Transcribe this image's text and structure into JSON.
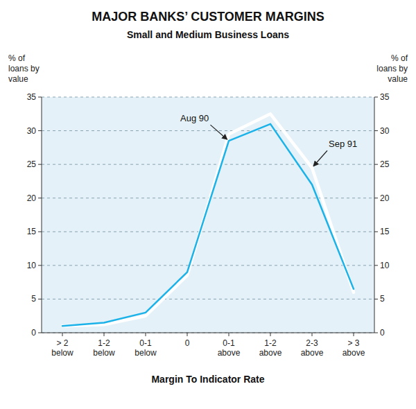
{
  "chart_data": {
    "type": "line",
    "title": "MAJOR BANKS’ CUSTOMER MARGINS",
    "subtitle": "Small and Medium Business Loans",
    "x_label": "Margin To Indicator Rate",
    "y_label": "% of\nloans by\nvalue",
    "y2_label": "% of\nloans by\nvalue",
    "categories": [
      "> 2\nbelow",
      "1-2\nbelow",
      "0-1\nbelow",
      "0",
      "0-1\nabove",
      "1-2\nabove",
      "2-3\nabove",
      "> 3\nabove"
    ],
    "series": [
      {
        "color": "#ffffff",
        "values": [
          1.0,
          1.2,
          2.5,
          8.5,
          29.5,
          32.5,
          24.5,
          6.0
        ]
      },
      {
        "color": "#1ab2e8",
        "values": [
          1.0,
          1.5,
          3.0,
          9.0,
          28.5,
          31.0,
          22.0,
          6.5
        ]
      }
    ],
    "annotations": [
      {
        "text": "Aug 90",
        "x": "0-1\nabove",
        "y": 28.5
      },
      {
        "text": "Sep 91",
        "x": "2-3\nabove",
        "y": 24.5
      }
    ],
    "ylim": [
      0,
      35
    ],
    "yticks": [
      0,
      5,
      10,
      15,
      20,
      25,
      30,
      35
    ],
    "y2lim": [
      0,
      35
    ],
    "y2ticks": [
      0,
      5,
      10,
      15,
      20,
      25,
      30,
      35
    ],
    "grid": true
  }
}
